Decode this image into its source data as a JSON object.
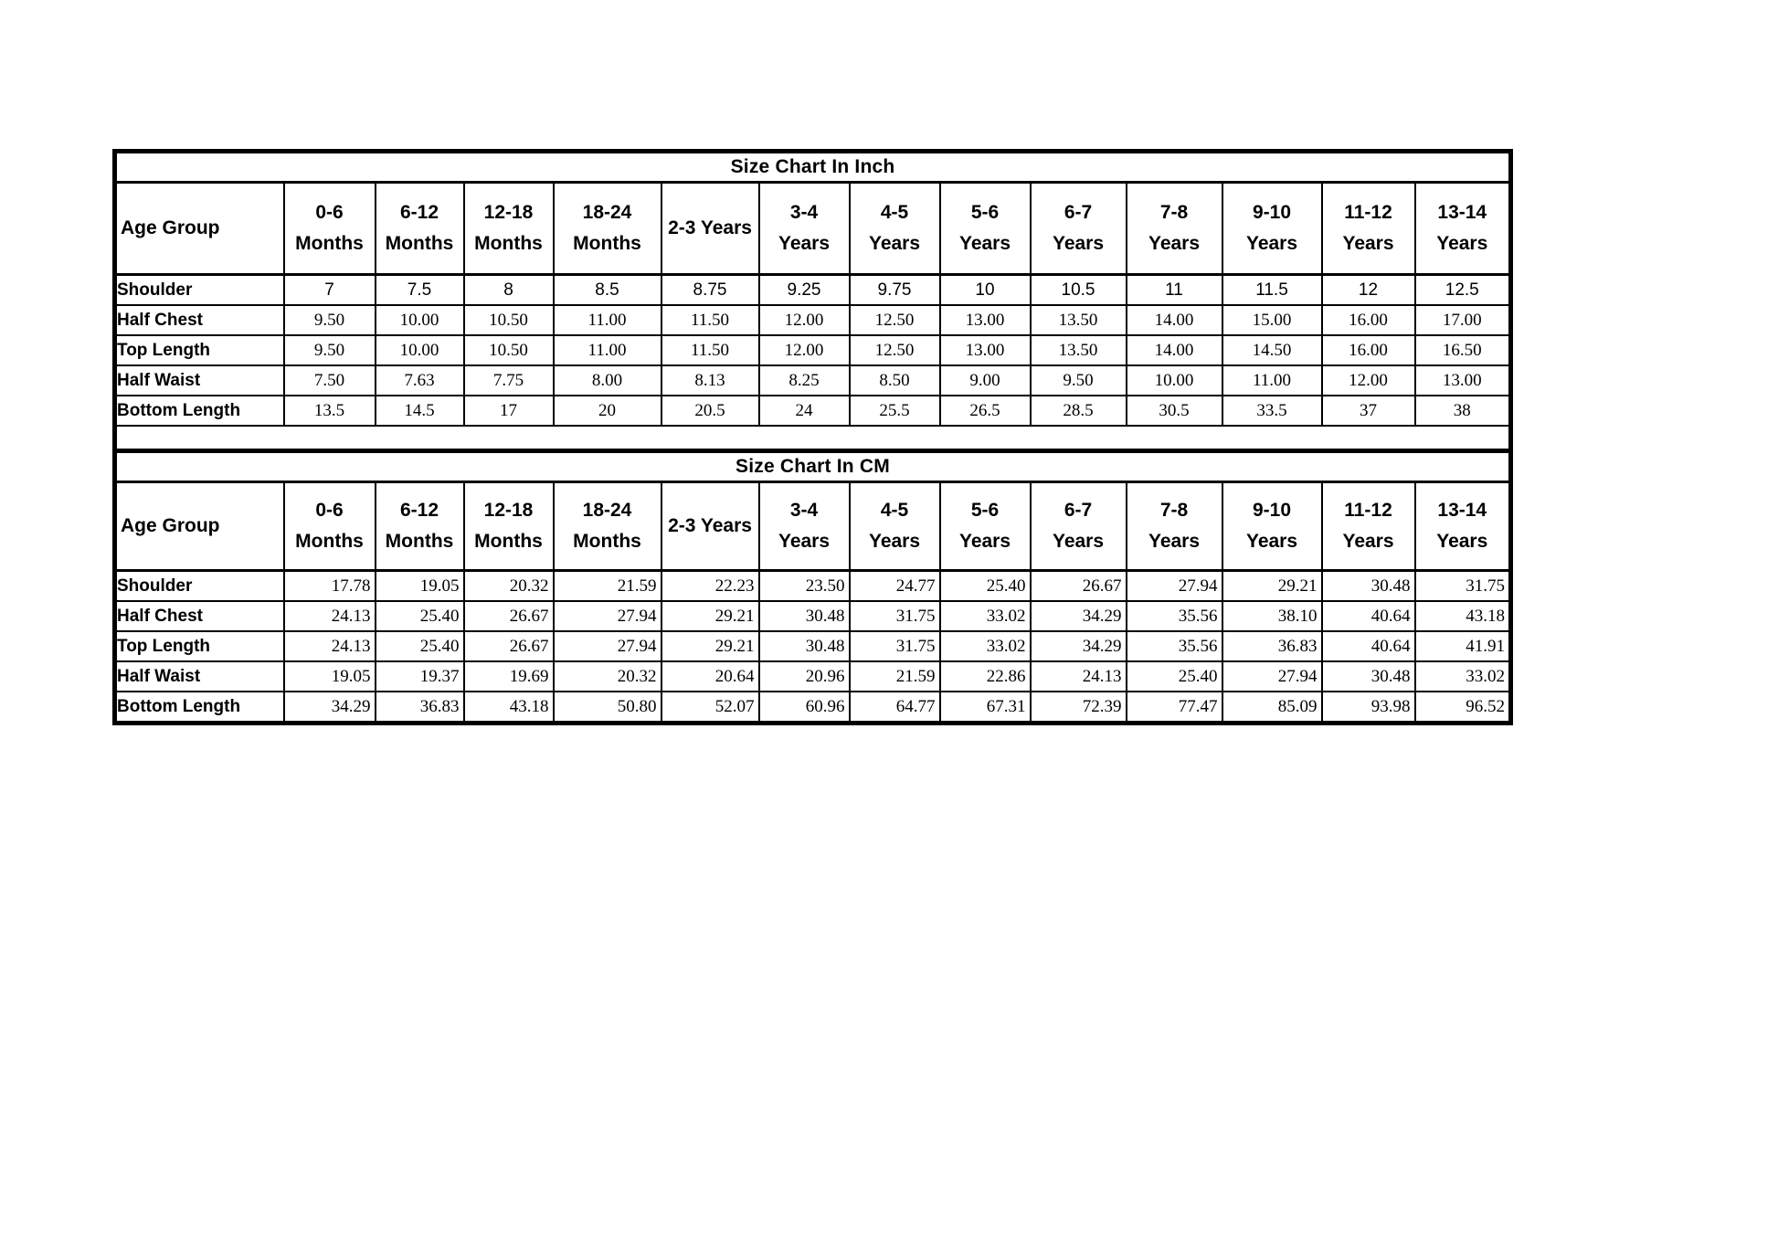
{
  "page": {
    "background": "#ffffff",
    "border_color": "#000000"
  },
  "tables": [
    {
      "title": "Size Chart In Inch",
      "unit": "inch",
      "label_header": "Age Group",
      "columns": [
        "0-6\nMonths",
        "6-12\nMonths",
        "12-18\nMonths",
        "18-24\nMonths",
        "2-3 Years",
        "3-4\nYears",
        "4-5\nYears",
        "5-6\nYears",
        "6-7\nYears",
        "7-8\nYears",
        "9-10\nYears",
        "11-12\nYears",
        "13-14\nYears"
      ],
      "rows": [
        {
          "label": "Shoulder",
          "values": [
            "7",
            "7.5",
            "8",
            "8.5",
            "8.75",
            "9.25",
            "9.75",
            "10",
            "10.5",
            "11",
            "11.5",
            "12",
            "12.5"
          ]
        },
        {
          "label": "Half Chest",
          "values": [
            "9.50",
            "10.00",
            "10.50",
            "11.00",
            "11.50",
            "12.00",
            "12.50",
            "13.00",
            "13.50",
            "14.00",
            "15.00",
            "16.00",
            "17.00"
          ]
        },
        {
          "label": "Top Length",
          "values": [
            "9.50",
            "10.00",
            "10.50",
            "11.00",
            "11.50",
            "12.00",
            "12.50",
            "13.00",
            "13.50",
            "14.00",
            "14.50",
            "16.00",
            "16.50"
          ]
        },
        {
          "label": "Half Waist",
          "values": [
            "7.50",
            "7.63",
            "7.75",
            "8.00",
            "8.13",
            "8.25",
            "8.50",
            "9.00",
            "9.50",
            "10.00",
            "11.00",
            "12.00",
            "13.00"
          ]
        },
        {
          "label": "Bottom Length",
          "values": [
            "13.5",
            "14.5",
            "17",
            "20",
            "20.5",
            "24",
            "25.5",
            "26.5",
            "28.5",
            "30.5",
            "33.5",
            "37",
            "38"
          ]
        }
      ]
    },
    {
      "title": "Size Chart In CM",
      "unit": "cm",
      "label_header": "Age Group",
      "columns": [
        "0-6\nMonths",
        "6-12\nMonths",
        "12-18\nMonths",
        "18-24\nMonths",
        "2-3 Years",
        "3-4\nYears",
        "4-5\nYears",
        "5-6\nYears",
        "6-7\nYears",
        "7-8\nYears",
        "9-10\nYears",
        "11-12\nYears",
        "13-14\nYears"
      ],
      "rows": [
        {
          "label": "Shoulder",
          "values": [
            "17.78",
            "19.05",
            "20.32",
            "21.59",
            "22.23",
            "23.50",
            "24.77",
            "25.40",
            "26.67",
            "27.94",
            "29.21",
            "30.48",
            "31.75"
          ]
        },
        {
          "label": "Half Chest",
          "values": [
            "24.13",
            "25.40",
            "26.67",
            "27.94",
            "29.21",
            "30.48",
            "31.75",
            "33.02",
            "34.29",
            "35.56",
            "38.10",
            "40.64",
            "43.18"
          ]
        },
        {
          "label": "Top Length",
          "values": [
            "24.13",
            "25.40",
            "26.67",
            "27.94",
            "29.21",
            "30.48",
            "31.75",
            "33.02",
            "34.29",
            "35.56",
            "36.83",
            "40.64",
            "41.91"
          ]
        },
        {
          "label": "Half Waist",
          "values": [
            "19.05",
            "19.37",
            "19.69",
            "20.32",
            "20.64",
            "20.96",
            "21.59",
            "22.86",
            "24.13",
            "25.40",
            "27.94",
            "30.48",
            "33.02"
          ]
        },
        {
          "label": "Bottom Length",
          "values": [
            "34.29",
            "36.83",
            "43.18",
            "50.80",
            "52.07",
            "60.96",
            "64.77",
            "67.31",
            "72.39",
            "77.47",
            "85.09",
            "93.98",
            "96.52"
          ]
        }
      ]
    }
  ]
}
